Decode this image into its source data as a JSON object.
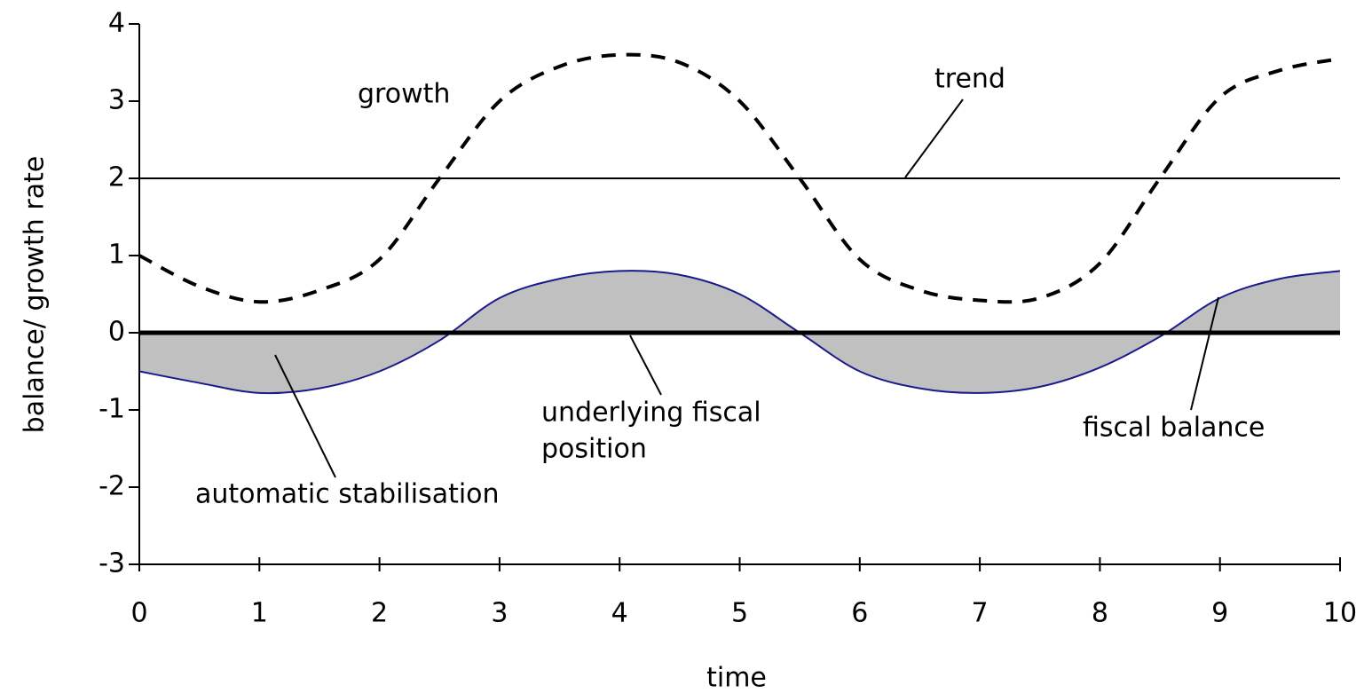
{
  "chart_data": {
    "type": "line",
    "x": [
      0,
      0.5,
      1,
      1.5,
      2,
      2.5,
      3,
      3.5,
      4,
      4.5,
      5,
      5.5,
      6,
      6.5,
      7,
      7.5,
      8,
      8.5,
      9,
      9.5,
      10
    ],
    "series": [
      {
        "name": "growth",
        "color": "#000000",
        "style": "dashed",
        "values": [
          1.0,
          0.6,
          0.4,
          0.55,
          0.95,
          2.0,
          3.0,
          3.45,
          3.6,
          3.5,
          3.0,
          2.0,
          0.95,
          0.55,
          0.42,
          0.45,
          0.9,
          2.0,
          3.05,
          3.4,
          3.55
        ]
      },
      {
        "name": "trend",
        "color": "#000000",
        "style": "thin",
        "values": [
          2,
          2,
          2,
          2,
          2,
          2,
          2,
          2,
          2,
          2,
          2,
          2,
          2,
          2,
          2,
          2,
          2,
          2,
          2,
          2,
          2
        ]
      },
      {
        "name": "fiscal balance",
        "color": "#1a1a8c",
        "style": "thin",
        "values": [
          -0.5,
          -0.65,
          -0.78,
          -0.72,
          -0.5,
          -0.1,
          0.45,
          0.7,
          0.8,
          0.75,
          0.5,
          0.0,
          -0.5,
          -0.72,
          -0.78,
          -0.7,
          -0.45,
          -0.05,
          0.45,
          0.7,
          0.8
        ]
      },
      {
        "name": "underlying fiscal position",
        "color": "#000000",
        "style": "thick",
        "values": [
          0,
          0,
          0,
          0,
          0,
          0,
          0,
          0,
          0,
          0,
          0,
          0,
          0,
          0,
          0,
          0,
          0,
          0,
          0,
          0,
          0
        ]
      }
    ],
    "fill_color": "#c0c0c0",
    "annotations": [
      {
        "text": [
          "growth"
        ]
      },
      {
        "text": [
          "trend"
        ]
      },
      {
        "text": [
          "automatic stabilisation"
        ]
      },
      {
        "text": [
          "underlying fiscal",
          "position"
        ]
      },
      {
        "text": [
          "fiscal balance"
        ]
      }
    ],
    "x_label": "time",
    "y_label": "balance/ growth rate",
    "xlim": [
      0,
      10
    ],
    "xticks": [
      0,
      1,
      2,
      3,
      4,
      5,
      6,
      7,
      8,
      9,
      10
    ],
    "ylim": [
      -3,
      4
    ],
    "yticks": [
      -3,
      -2,
      -1,
      0,
      1,
      2,
      3,
      4
    ]
  }
}
